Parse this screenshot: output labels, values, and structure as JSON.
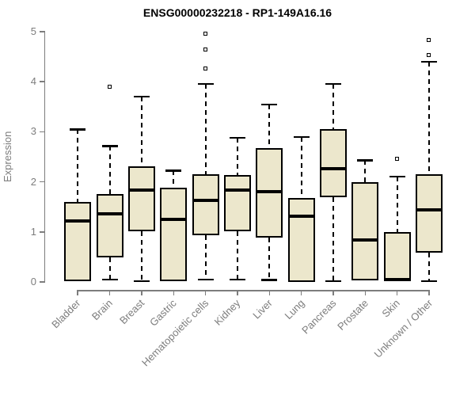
{
  "chart_data": {
    "type": "boxplot",
    "title": "ENSG00000232218 - RP1-149A16.16",
    "ylabel": "Expression",
    "xlabel": "",
    "ylim": [
      0,
      5
    ],
    "yticks": [
      0,
      1,
      2,
      3,
      4,
      5
    ],
    "grid": false,
    "legend": "none",
    "categories": [
      "Bladder",
      "Brain",
      "Breast",
      "Gastric",
      "Hematopoietic cells",
      "Kidney",
      "Liver",
      "Lung",
      "Pancreas",
      "Prostate",
      "Skin",
      "Unknown / Other"
    ],
    "boxes": [
      {
        "category": "Bladder",
        "whislo": null,
        "q1": 0.02,
        "med": 1.22,
        "q3": 1.6,
        "whishi": 3.05,
        "outliers": []
      },
      {
        "category": "Brain",
        "whislo": 0.05,
        "q1": 0.49,
        "med": 1.36,
        "q3": 1.75,
        "whishi": 2.72,
        "outliers": [
          3.89
        ]
      },
      {
        "category": "Breast",
        "whislo": 0.02,
        "q1": 1.02,
        "med": 1.84,
        "q3": 2.31,
        "whishi": 3.71,
        "outliers": []
      },
      {
        "category": "Gastric",
        "whislo": null,
        "q1": 0.02,
        "med": 1.25,
        "q3": 1.89,
        "whishi": 2.23,
        "outliers": []
      },
      {
        "category": "Hematopoietic cells",
        "whislo": 0.05,
        "q1": 0.94,
        "med": 1.63,
        "q3": 2.15,
        "whishi": 3.96,
        "outliers": [
          4.26,
          4.63,
          4.96
        ]
      },
      {
        "category": "Kidney",
        "whislo": 0.05,
        "q1": 1.02,
        "med": 1.84,
        "q3": 2.14,
        "whishi": 2.88,
        "outliers": []
      },
      {
        "category": "Liver",
        "whislo": 0.04,
        "q1": 0.89,
        "med": 1.8,
        "q3": 2.68,
        "whishi": 3.55,
        "outliers": []
      },
      {
        "category": "Lung",
        "whislo": null,
        "q1": 0,
        "med": 1.31,
        "q3": 1.68,
        "whishi": 2.9,
        "outliers": []
      },
      {
        "category": "Pancreas",
        "whislo": 0.02,
        "q1": 1.69,
        "med": 2.27,
        "q3": 3.05,
        "whishi": 3.96,
        "outliers": []
      },
      {
        "category": "Prostate",
        "whislo": null,
        "q1": 0.03,
        "med": 0.84,
        "q3": 2.0,
        "whishi": 2.43,
        "outliers": []
      },
      {
        "category": "Skin",
        "whislo": null,
        "q1": 0.02,
        "med": 0.05,
        "q3": 0.99,
        "whishi": 2.11,
        "outliers": [
          2.45
        ]
      },
      {
        "category": "Unknown / Other",
        "whislo": 0.02,
        "q1": 0.58,
        "med": 1.44,
        "q3": 2.15,
        "whishi": 4.4,
        "outliers": [
          4.53,
          4.83
        ]
      }
    ]
  },
  "colors": {
    "box_fill": "#ECE7CC",
    "box_line": "#000000",
    "median": "#000000",
    "whisker": "#000000",
    "axis": "#7D7D7D",
    "title": "#000000",
    "background": "#FFFFFF"
  }
}
